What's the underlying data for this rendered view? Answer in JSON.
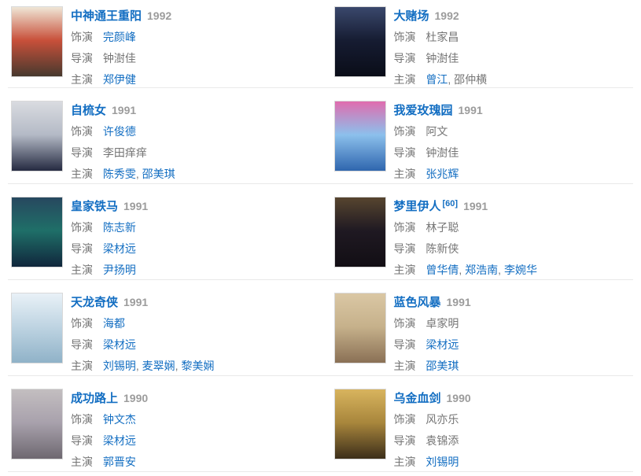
{
  "page": {
    "background": "#ffffff",
    "divider_color": "#e9e9e9",
    "link_color": "#136ec2",
    "muted_color": "#757575",
    "year_color": "#9c9c9c"
  },
  "labels": {
    "plays": "饰演",
    "director": "导演",
    "starring": "主演"
  },
  "separator": ", ",
  "items": [
    {
      "title": "中神通王重阳",
      "year": "1992",
      "ref": "",
      "plays": [
        {
          "text": "完颜峰",
          "link": true
        }
      ],
      "director": [
        {
          "text": "钟澍佳",
          "link": false
        }
      ],
      "starring": [
        {
          "text": "郑伊健",
          "link": true
        }
      ],
      "poster": {
        "top": "#efe6d6",
        "mid": "#c8503a",
        "bottom": "#47392e"
      }
    },
    {
      "title": "大赌场",
      "year": "1992",
      "ref": "",
      "plays": [
        {
          "text": "杜家昌",
          "link": false
        }
      ],
      "director": [
        {
          "text": "钟澍佳",
          "link": false
        }
      ],
      "starring": [
        {
          "text": "曾江",
          "link": true
        },
        {
          "text": "邵仲横",
          "link": false
        }
      ],
      "poster": {
        "top": "#3a486c",
        "mid": "#161c32",
        "bottom": "#0a0d18"
      }
    },
    {
      "title": "自梳女",
      "year": "1991",
      "ref": "",
      "plays": [
        {
          "text": "许俊德",
          "link": true
        }
      ],
      "director": [
        {
          "text": "李田痒痒",
          "link": false
        }
      ],
      "starring": [
        {
          "text": "陈秀雯",
          "link": true
        },
        {
          "text": "邵美琪",
          "link": true
        }
      ],
      "poster": {
        "top": "#d9dbe0",
        "mid": "#b4bac6",
        "bottom": "#252a41"
      }
    },
    {
      "title": "我爱玫瑰园",
      "year": "1991",
      "ref": "",
      "plays": [
        {
          "text": "阿文",
          "link": false
        }
      ],
      "director": [
        {
          "text": "钟澍佳",
          "link": false
        }
      ],
      "starring": [
        {
          "text": "张兆辉",
          "link": true
        }
      ],
      "poster": {
        "top": "#e06cae",
        "mid": "#8cc0ec",
        "bottom": "#2f66ae"
      }
    },
    {
      "title": "皇家铁马",
      "year": "1991",
      "ref": "",
      "plays": [
        {
          "text": "陈志新",
          "link": true
        }
      ],
      "director": [
        {
          "text": "梁材远",
          "link": true
        }
      ],
      "starring": [
        {
          "text": "尹扬明",
          "link": true
        }
      ],
      "poster": {
        "top": "#27485f",
        "mid": "#1f6f68",
        "bottom": "#10263c"
      }
    },
    {
      "title": "梦里伊人",
      "year": "1991",
      "ref": "[60]",
      "plays": [
        {
          "text": "林子聪",
          "link": false
        }
      ],
      "director": [
        {
          "text": "陈新侠",
          "link": false
        }
      ],
      "starring": [
        {
          "text": "曾华倩",
          "link": true
        },
        {
          "text": "郑浩南",
          "link": true
        },
        {
          "text": "李婉华",
          "link": true
        }
      ],
      "poster": {
        "top": "#57452f",
        "mid": "#1f1922",
        "bottom": "#120e14"
      }
    },
    {
      "title": "天龙奇侠",
      "year": "1991",
      "ref": "",
      "plays": [
        {
          "text": "海都",
          "link": true
        }
      ],
      "director": [
        {
          "text": "梁材远",
          "link": true
        }
      ],
      "starring": [
        {
          "text": "刘锡明",
          "link": true
        },
        {
          "text": "麦翠娴",
          "link": true
        },
        {
          "text": "黎美娴",
          "link": true
        }
      ],
      "poster": {
        "top": "#e9f1f7",
        "mid": "#bed4e2",
        "bottom": "#90b2c8"
      }
    },
    {
      "title": "蓝色风暴",
      "year": "1991",
      "ref": "",
      "plays": [
        {
          "text": "卓家明",
          "link": false
        }
      ],
      "director": [
        {
          "text": "梁材远",
          "link": true
        }
      ],
      "starring": [
        {
          "text": "邵美琪",
          "link": true
        }
      ],
      "poster": {
        "top": "#dac7a4",
        "mid": "#c6b18b",
        "bottom": "#8a7055"
      }
    },
    {
      "title": "成功路上",
      "year": "1990",
      "ref": "",
      "plays": [
        {
          "text": "钟文杰",
          "link": true
        }
      ],
      "director": [
        {
          "text": "梁材远",
          "link": true
        }
      ],
      "starring": [
        {
          "text": "郭晋安",
          "link": true
        }
      ],
      "poster": {
        "top": "#c3bec0",
        "mid": "#a8a1ac",
        "bottom": "#6e6870"
      }
    },
    {
      "title": "乌金血剑",
      "year": "1990",
      "ref": "",
      "plays": [
        {
          "text": "风亦乐",
          "link": false
        }
      ],
      "director": [
        {
          "text": "袁锦添",
          "link": false
        }
      ],
      "starring": [
        {
          "text": "刘锡明",
          "link": true
        }
      ],
      "poster": {
        "top": "#d8b45e",
        "mid": "#a8863c",
        "bottom": "#3c2e1a"
      }
    }
  ]
}
